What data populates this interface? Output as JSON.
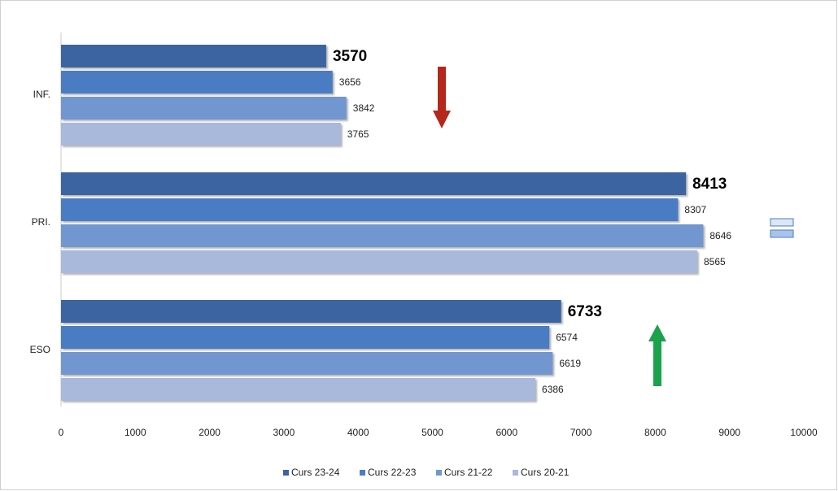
{
  "chart_data": {
    "type": "bar",
    "orientation": "horizontal",
    "categories": [
      "INF.",
      "PRI.",
      "ESO"
    ],
    "series": [
      {
        "name": "Curs 23-24",
        "color": "#3b64a0",
        "values": [
          3570,
          8413,
          6733
        ]
      },
      {
        "name": "Curs 22-23",
        "color": "#4a7cc4",
        "values": [
          3656,
          8307,
          6574
        ]
      },
      {
        "name": "Curs 21-22",
        "color": "#7296d0",
        "values": [
          3842,
          8646,
          6619
        ]
      },
      {
        "name": "Curs 20-21",
        "color": "#a9b9dc",
        "values": [
          3765,
          8565,
          6386
        ]
      }
    ],
    "xlim": [
      0,
      10000
    ],
    "xticks": [
      0,
      1000,
      2000,
      3000,
      4000,
      5000,
      6000,
      7000,
      8000,
      9000,
      10000
    ],
    "legend": "bottom"
  }
}
